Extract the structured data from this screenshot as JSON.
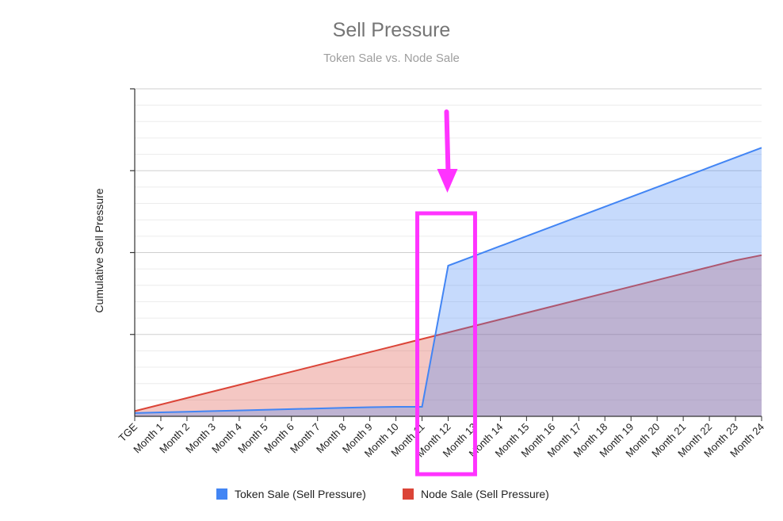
{
  "chart_data": {
    "type": "area",
    "title": "Sell Pressure",
    "subtitle": "Token Sale vs. Node Sale",
    "xlabel": "",
    "ylabel": "Cumulative Sell Pressure",
    "categories": [
      "TGE",
      "Month 1",
      "Month 2",
      "Month 3",
      "Month 4",
      "Month 5",
      "Month 6",
      "Month 7",
      "Month 8",
      "Month 9",
      "Month 10",
      "Month 11",
      "Month 12",
      "Month 13",
      "Month 14",
      "Month 15",
      "Month 16",
      "Month 17",
      "Month 18",
      "Month 19",
      "Month 20",
      "Month 21",
      "Month 22",
      "Month 23",
      "Month 24"
    ],
    "ylim": [
      0,
      100
    ],
    "y_tick_labels_shown": false,
    "grid": true,
    "legend_position": "bottom",
    "series": [
      {
        "name": "Token Sale (Sell Pressure)",
        "color": "#4285f4",
        "values": [
          1,
          1.2,
          1.4,
          1.6,
          1.8,
          2.0,
          2.2,
          2.4,
          2.6,
          2.8,
          2.9,
          2.9,
          46,
          49,
          52,
          55,
          58,
          61,
          64,
          67,
          70,
          73,
          76,
          79,
          82
        ]
      },
      {
        "name": "Node Sale (Sell Pressure)",
        "color": "#db4437",
        "values": [
          1.6,
          3.6,
          5.6,
          7.6,
          9.6,
          11.6,
          13.6,
          15.6,
          17.6,
          19.6,
          21.6,
          23.6,
          25.6,
          27.6,
          29.6,
          31.6,
          33.6,
          35.6,
          37.6,
          39.6,
          41.6,
          43.6,
          45.6,
          47.6,
          49.2
        ]
      }
    ],
    "annotations": [
      {
        "type": "arrow",
        "color": "#ff33ff",
        "target_category": "Month 12"
      },
      {
        "type": "highlight-box",
        "color": "#ff33ff",
        "from_category": "Month 11",
        "to_category": "Month 13"
      }
    ]
  }
}
